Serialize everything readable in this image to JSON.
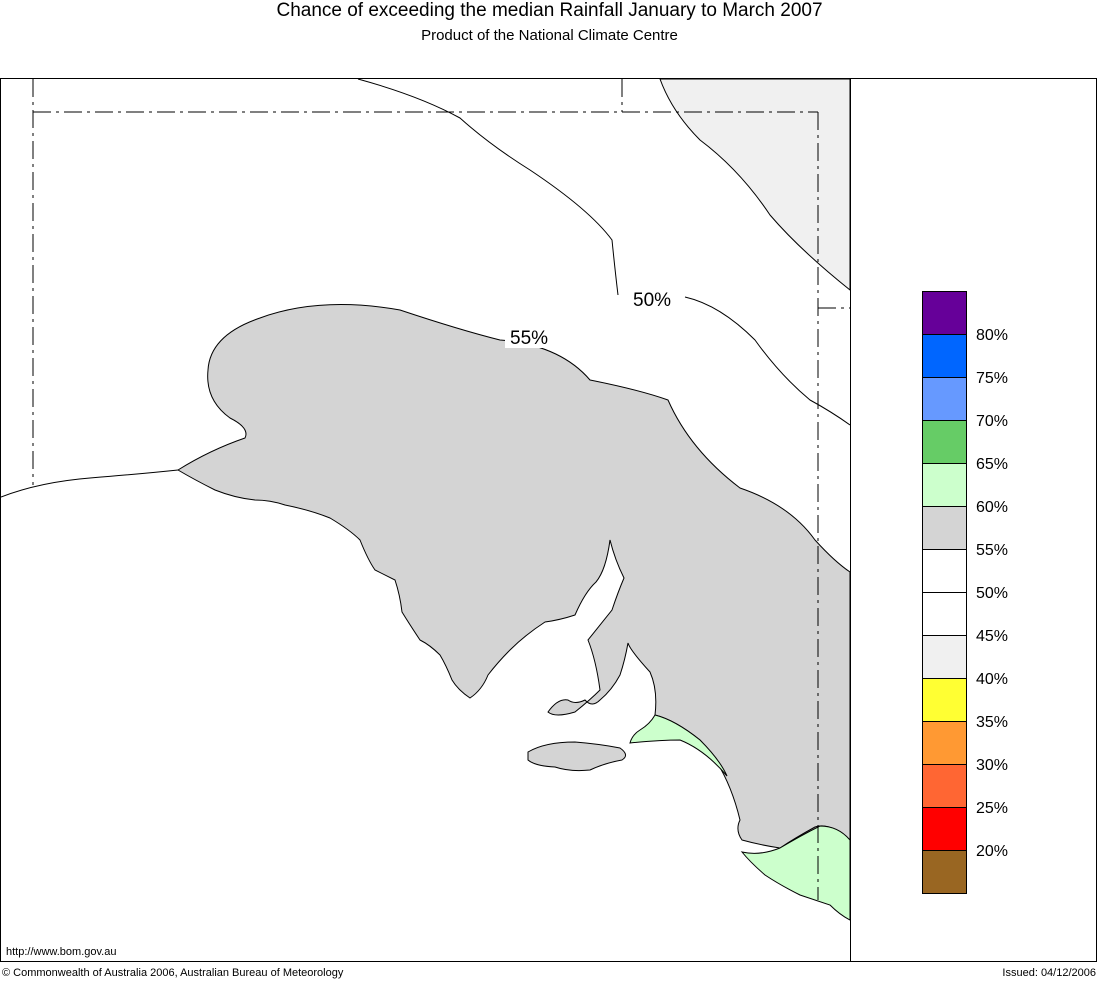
{
  "header": {
    "title": "Chance of exceeding the median Rainfall January to March 2007",
    "subtitle": "Product of the National Climate Centre"
  },
  "map": {
    "contours": [
      {
        "label": "50%"
      },
      {
        "label": "55%"
      }
    ]
  },
  "legend": {
    "swatches": [
      {
        "color": "#660099"
      },
      {
        "color": "#0066ff"
      },
      {
        "color": "#6699ff"
      },
      {
        "color": "#66cc66"
      },
      {
        "color": "#ccffcc"
      },
      {
        "color": "#d4d4d4"
      },
      {
        "color": "#ffffff"
      },
      {
        "color": "#ffffff"
      },
      {
        "color": "#f0f0f0"
      },
      {
        "color": "#ffff33"
      },
      {
        "color": "#ff9933"
      },
      {
        "color": "#ff6633"
      },
      {
        "color": "#ff0000"
      },
      {
        "color": "#996622"
      }
    ],
    "labels": [
      "80%",
      "75%",
      "70%",
      "65%",
      "60%",
      "55%",
      "50%",
      "45%",
      "40%",
      "35%",
      "30%",
      "25%",
      "20%"
    ]
  },
  "footer": {
    "url": "http://www.bom.gov.au",
    "copyright": "© Commonwealth of Australia 2006, Australian Bureau of Meteorology",
    "issued": "Issued: 04/12/2006"
  }
}
